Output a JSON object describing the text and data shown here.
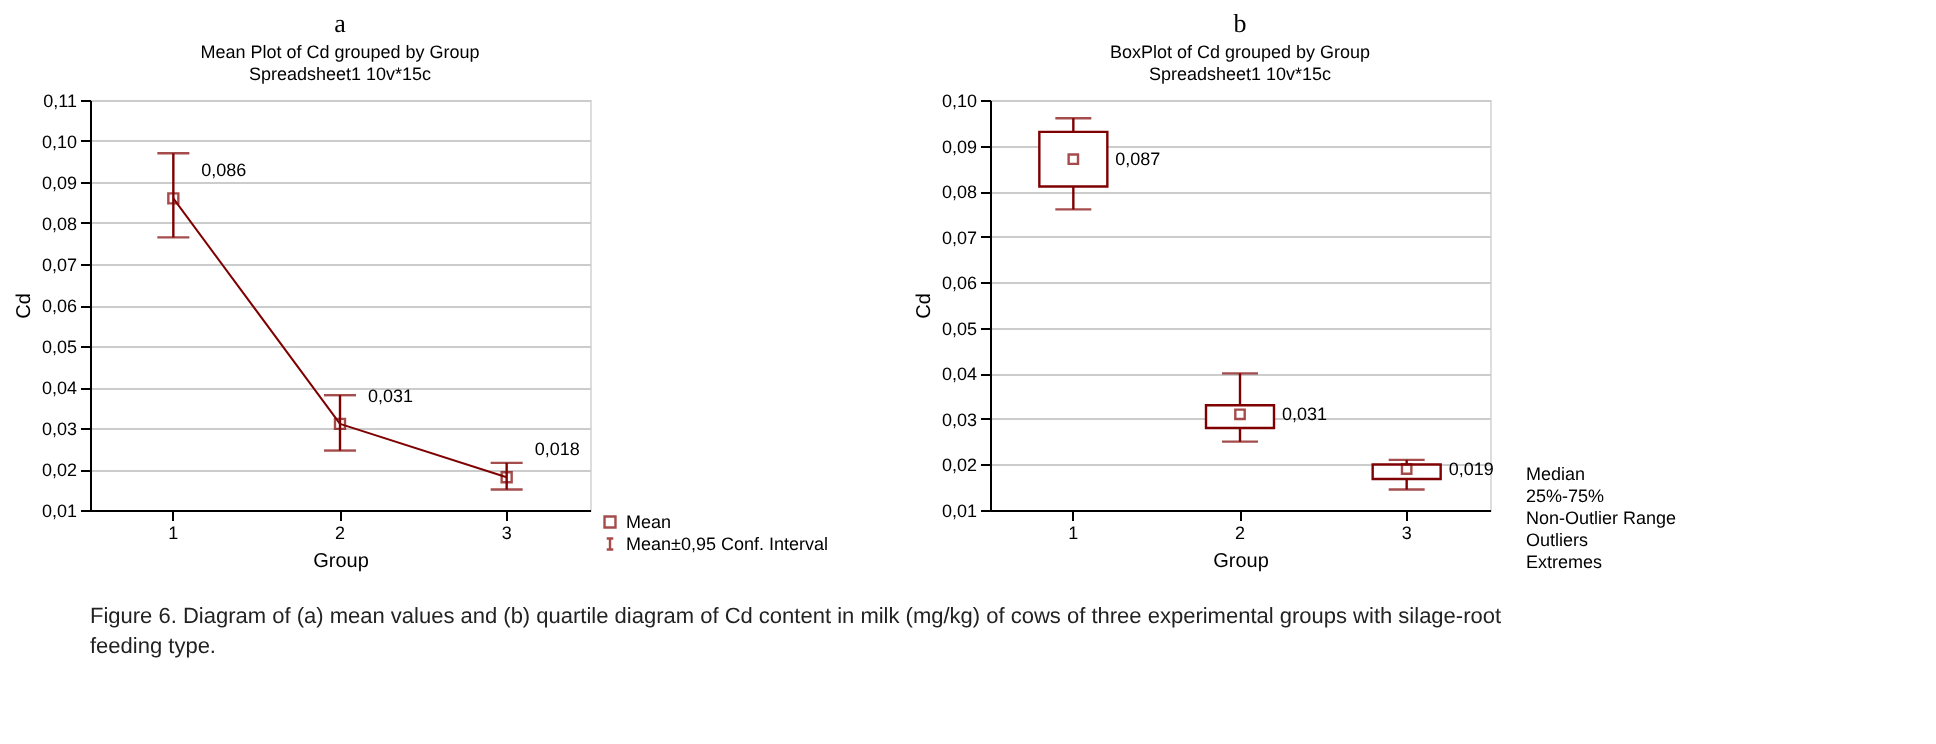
{
  "chart_data": [
    {
      "type": "line",
      "title": "a",
      "subtitle": "Mean Plot of Cd grouped by  Group",
      "xlabel": "Group",
      "ylabel": "Cd",
      "categories": [
        "1",
        "2",
        "3"
      ],
      "series": [
        {
          "name": "Mean",
          "color": "#7f0000",
          "values": [
            0.086,
            0.031,
            0.018
          ],
          "errors": [
            [
              0.0765,
              0.097
            ],
            [
              0.0245,
              0.038
            ],
            [
              0.015,
              0.0215
            ]
          ],
          "value_labels": [
            "0,086",
            "0,031",
            "0,018"
          ]
        }
      ],
      "ylim": [
        0.01,
        0.11
      ],
      "yticks": [
        {
          "value": 0.01,
          "label": "0,01"
        },
        {
          "value": 0.02,
          "label": "0,02"
        },
        {
          "value": 0.03,
          "label": "0,03"
        },
        {
          "value": 0.04,
          "label": "0,04"
        },
        {
          "value": 0.05,
          "label": "0,05"
        },
        {
          "value": 0.06,
          "label": "0,06"
        },
        {
          "value": 0.07,
          "label": "0,07"
        },
        {
          "value": 0.08,
          "label": "0,08"
        },
        {
          "value": 0.09,
          "label": "0,09"
        },
        {
          "value": 0.1,
          "label": "0,10"
        },
        {
          "value": 0.11,
          "label": "0,11"
        }
      ],
      "grid": "y",
      "marker": "square",
      "line_style": "solid",
      "legend": "bottom right",
      "annotations": [
        "Spreadsheet1 10v*15c",
        "Mean±0,95 Conf. Interval"
      ]
    },
    {
      "type": "box",
      "title": "b",
      "subtitle": "BoxPlot of Cd grouped by  Group",
      "xlabel": "Group",
      "ylabel": "Cd",
      "categories": [
        "1",
        "2",
        "3"
      ],
      "series": [
        {
          "color": "#7f0000",
          "boxes": [
            {
              "low": 0.076,
              "q1": 0.081,
              "median": 0.087,
              "q3": 0.093,
              "high": 0.096
            },
            {
              "low": 0.025,
              "q1": 0.028,
              "median": 0.031,
              "q3": 0.033,
              "high": 0.04
            },
            {
              "low": 0.0145,
              "q1": 0.0168,
              "median": 0.019,
              "q3": 0.02,
              "high": 0.021
            }
          ]
        }
      ],
      "ylim": [
        0.01,
        0.1
      ],
      "yticks": [
        {
          "value": 0.01,
          "label": "0,01"
        },
        {
          "value": 0.02,
          "label": "0,02"
        },
        {
          "value": 0.03,
          "label": "0,03"
        },
        {
          "value": 0.04,
          "label": "0,04"
        },
        {
          "value": 0.05,
          "label": "0,05"
        },
        {
          "value": 0.06,
          "label": "0,06"
        },
        {
          "value": 0.07,
          "label": "0,07"
        },
        {
          "value": 0.08,
          "label": "0,08"
        },
        {
          "value": 0.09,
          "label": "0,09"
        },
        {
          "value": 0.1,
          "label": "0,10"
        }
      ],
      "grid": "y",
      "annotations": [
        "Spreadsheet1 10v*15c",
        "Median",
        "25%-75%",
        "Non-Outlier Range",
        "Outliers",
        "Extremes",
        {
          "text": "0,087",
          "x": "1",
          "y": 0.087
        },
        {
          "text": "0,031",
          "x": "2",
          "y": 0.031
        },
        {
          "text": "0,019",
          "x": "3",
          "y": 0.019
        }
      ]
    },
    {
      "type": "other",
      "annotations": [
        "Figure 6. Diagram of (a) mean values and (b) quartile diagram of Cd content in milk (mg/kg) of cows of three experimental groups with silage-root feeding type."
      ]
    }
  ]
}
